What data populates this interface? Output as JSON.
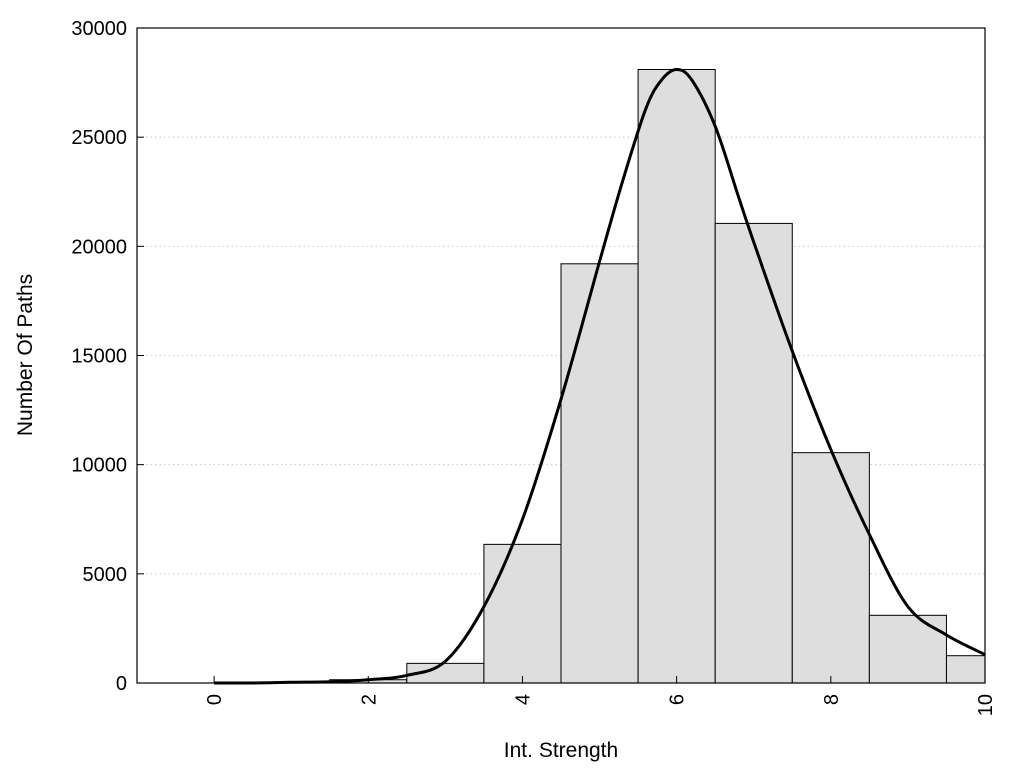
{
  "chart_data": {
    "type": "bar",
    "xlabel": "Int. Strength",
    "ylabel": "Number Of Paths",
    "xlim": [
      -1,
      10
    ],
    "ylim": [
      0,
      30000
    ],
    "x_ticks": [
      "0",
      "2",
      "4",
      "6",
      "8",
      "10"
    ],
    "y_ticks": [
      "0",
      "5000",
      "10000",
      "15000",
      "20000",
      "25000",
      "30000"
    ],
    "grid": "horizontal-dotted",
    "bin_width": 1,
    "bars": [
      {
        "x": 0,
        "value": 0
      },
      {
        "x": 1,
        "value": 30
      },
      {
        "x": 2,
        "value": 150
      },
      {
        "x": 3,
        "value": 900
      },
      {
        "x": 4,
        "value": 6350
      },
      {
        "x": 5,
        "value": 19200
      },
      {
        "x": 6,
        "value": 28100
      },
      {
        "x": 7,
        "value": 21050
      },
      {
        "x": 8,
        "value": 10550
      },
      {
        "x": 9,
        "value": 3100
      },
      {
        "x": 10,
        "value": 1250
      }
    ],
    "curve": {
      "x": [
        0,
        0.5,
        1,
        1.5,
        2,
        2.5,
        3,
        3.5,
        4,
        4.5,
        5,
        5.3,
        5.6,
        5.8,
        6,
        6.2,
        6.5,
        6.8,
        7,
        7.5,
        8,
        8.5,
        9,
        9.5,
        10
      ],
      "y": [
        0,
        0,
        30,
        60,
        150,
        350,
        1000,
        3500,
        7500,
        13000,
        19300,
        23000,
        26300,
        27600,
        28100,
        27600,
        25500,
        22300,
        20200,
        15200,
        10700,
        6800,
        3500,
        2200,
        1300
      ]
    }
  }
}
